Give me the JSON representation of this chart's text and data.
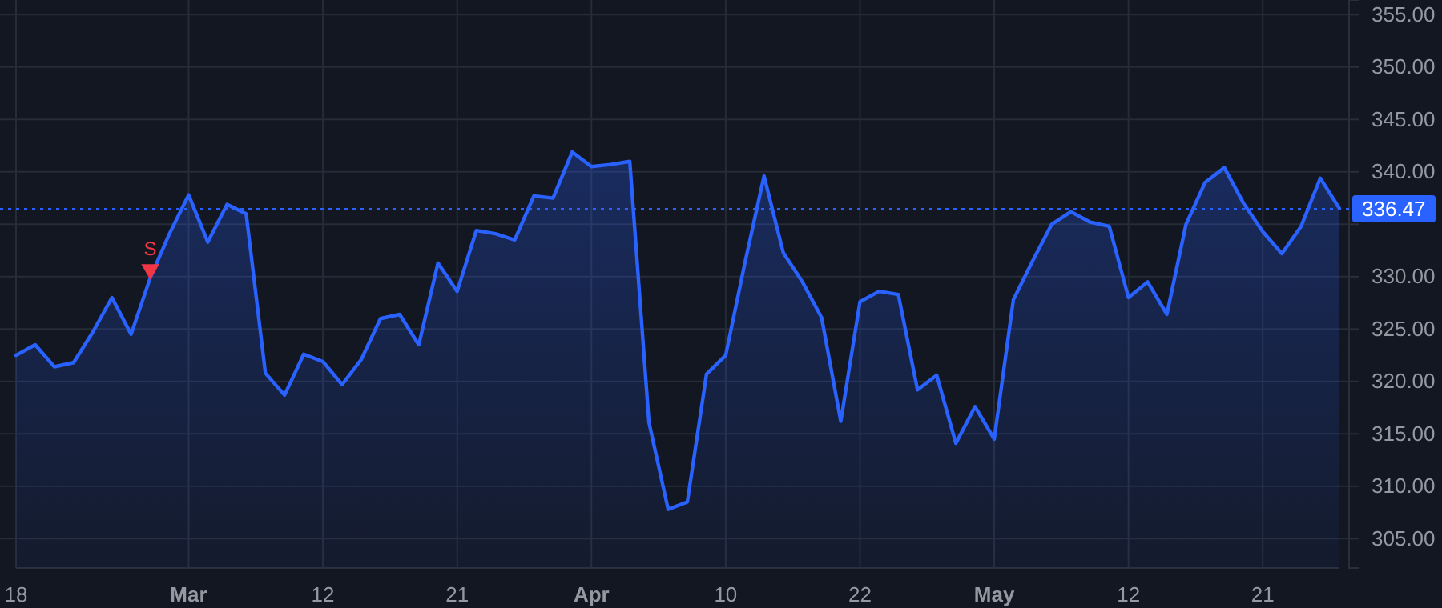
{
  "chart_data": {
    "type": "area",
    "categories": [
      "18",
      null,
      null,
      null,
      null,
      null,
      null,
      null,
      null,
      "Mar",
      null,
      null,
      null,
      null,
      null,
      null,
      "12",
      null,
      null,
      null,
      null,
      null,
      null,
      "21",
      null,
      null,
      null,
      null,
      null,
      null,
      "Apr",
      null,
      null,
      null,
      null,
      null,
      null,
      "10",
      null,
      null,
      null,
      null,
      null,
      null,
      "22",
      null,
      null,
      null,
      null,
      null,
      null,
      "May",
      null,
      null,
      null,
      null,
      null,
      null,
      "12",
      null,
      null,
      null,
      null,
      null,
      null,
      "21",
      null,
      null,
      null,
      null
    ],
    "series": [
      {
        "color": "#2962ff",
        "values": [
          322.5,
          323.5,
          321.4,
          321.8,
          324.7,
          328.0,
          324.5,
          329.9,
          334.1,
          337.8,
          333.3,
          336.9,
          336.0,
          320.8,
          318.7,
          322.6,
          321.9,
          319.7,
          322.1,
          326.0,
          326.4,
          323.5,
          331.3,
          328.6,
          334.4,
          334.1,
          333.5,
          337.7,
          337.5,
          341.9,
          340.5,
          340.7,
          341.0,
          316.1,
          307.8,
          308.5,
          320.7,
          322.5,
          331.3,
          339.6,
          332.3,
          329.5,
          326.1,
          316.2,
          327.6,
          328.6,
          328.3,
          319.2,
          320.6,
          314.1,
          317.6,
          314.5,
          327.8,
          331.5,
          335.0,
          336.2,
          335.2,
          334.8,
          328.0,
          329.5,
          326.4,
          335.0,
          339.0,
          340.4,
          337.0,
          334.3,
          332.2,
          334.8,
          339.4,
          336.5
        ]
      },
      {
        "type": "scatter",
        "color": "#f23645",
        "marker": "triangle",
        "values": [
          null,
          null,
          null,
          null,
          null,
          null,
          null,
          330.7,
          null,
          null,
          null,
          null,
          null,
          null,
          null,
          null,
          null,
          null,
          null,
          null,
          null,
          null,
          null,
          null,
          null,
          null,
          null,
          null,
          null,
          null,
          null,
          null,
          null,
          null,
          null,
          null,
          null,
          null,
          null,
          null,
          null,
          null,
          null,
          null,
          null,
          null,
          null,
          null,
          null,
          null,
          null,
          null,
          null,
          null,
          null,
          null,
          null,
          null,
          null,
          null,
          null,
          null,
          null,
          null,
          null,
          null,
          null,
          null,
          null,
          null
        ]
      }
    ],
    "annotations": [
      "S"
    ],
    "ylim": [
      302.2,
      356.4
    ],
    "yticks": [
      {
        "value": 305,
        "label": "305.00"
      },
      {
        "value": 310,
        "label": "310.00"
      },
      {
        "value": 315,
        "label": "315.00"
      },
      {
        "value": 320,
        "label": "320.00"
      },
      {
        "value": 325,
        "label": "325.00"
      },
      {
        "value": 330,
        "label": "330.00"
      },
      {
        "value": 335,
        "label": null
      },
      {
        "value": 340,
        "label": "340.00"
      },
      {
        "value": 345,
        "label": "345.00"
      },
      {
        "value": 350,
        "label": "350.00"
      },
      {
        "value": 355,
        "label": "355.00"
      }
    ],
    "ref_lines": [
      {
        "axis": "y",
        "value": 336.47,
        "label": "336.47",
        "color": "#2962ff",
        "line_style": "dotted"
      }
    ],
    "grid": true
  }
}
